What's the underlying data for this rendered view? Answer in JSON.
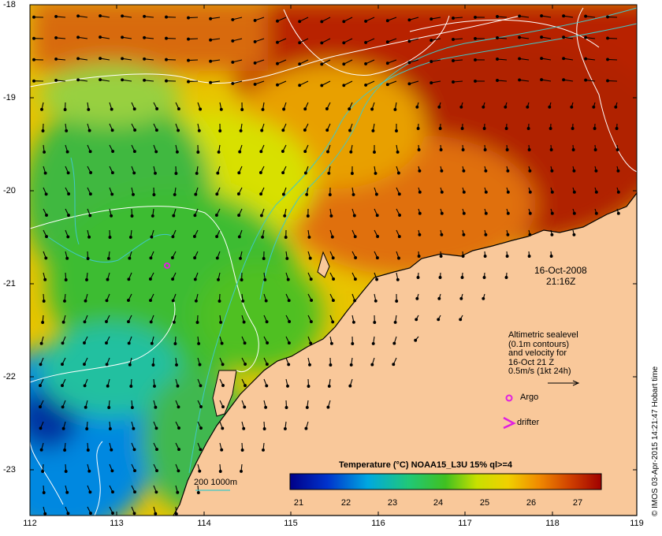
{
  "datetime": {
    "date": "16-Oct-2008",
    "time": "21:16Z"
  },
  "legend": {
    "sealevel_lines": [
      "Altimetric sealevel",
      "(0.1m contours)",
      "and velocity for",
      "16-Oct 21 Z",
      "0.5m/s (1kt 24h)"
    ],
    "argo_label": "Argo",
    "drifter_label": "drifter"
  },
  "depth_legend": "200  1000m",
  "colorbar": {
    "title": "Temperature (°C) NOAA15_L3U 15% ql>=4",
    "ticks": [
      "21",
      "22",
      "23",
      "24",
      "25",
      "26",
      "27"
    ]
  },
  "axes": {
    "x_ticks": [
      "112",
      "113",
      "114",
      "115",
      "116",
      "117",
      "118",
      "119"
    ],
    "y_ticks": [
      "-18",
      "-19",
      "-20",
      "-21",
      "-22",
      "-23"
    ]
  },
  "credit": "© IMOS 03-Apr-2015 14:21:47 Hobart time",
  "colors": {
    "land": "#f9c89a",
    "coast": "#000000",
    "contour": "#ffffff",
    "isobath": "#40c8c8",
    "argo": "#e020e0"
  }
}
